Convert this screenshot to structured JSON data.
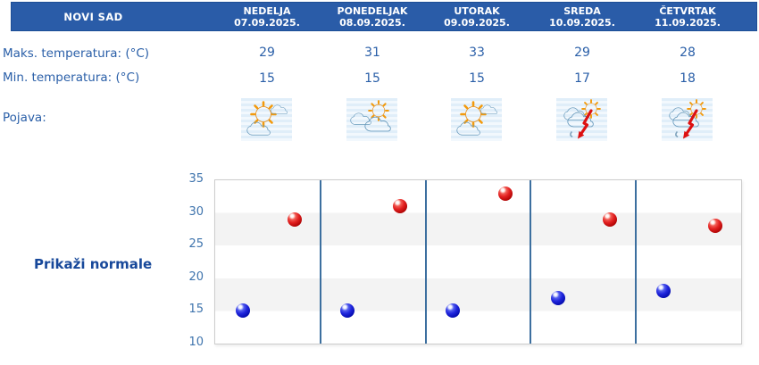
{
  "header": {
    "location": "NOVI SAD",
    "days": [
      {
        "name": "NEDELJA",
        "date": "07.09.2025."
      },
      {
        "name": "PONEDELJAK",
        "date": "08.09.2025."
      },
      {
        "name": "UTORAK",
        "date": "09.09.2025."
      },
      {
        "name": "SREDA",
        "date": "10.09.2025."
      },
      {
        "name": "ČETVRTAK",
        "date": "11.09.2025."
      }
    ]
  },
  "rows": {
    "max_temp_label": "Maks. temperatura: (°C)",
    "min_temp_label": "Min. temperatura: (°C)",
    "phenomenon_label": "Pojava:"
  },
  "forecast": {
    "max_temps": [
      29,
      31,
      33,
      29,
      28
    ],
    "min_temps": [
      15,
      15,
      15,
      17,
      18
    ],
    "icons": [
      "sun-behind-clouds",
      "clouds-with-sun",
      "sun-behind-clouds",
      "thunderstorm-with-sun",
      "thunderstorm-with-sun"
    ]
  },
  "actions": {
    "show_normals_label": "Prikaži normale"
  },
  "colors": {
    "header_bg": "#2a5ca8",
    "text_blue": "#2a5fa8",
    "link_blue": "#17489a",
    "band_gray": "#f3f3f3",
    "divider_blue": "#3c6f9f"
  },
  "chart_data": {
    "type": "scatter",
    "categories": [
      "NEDELJA 07.09.2025.",
      "PONEDELJAK 08.09.2025.",
      "UTORAK 09.09.2025.",
      "SREDA 10.09.2025.",
      "ČETVRTAK 11.09.2025."
    ],
    "series": [
      {
        "name": "Maks. temperatura (°C)",
        "key": "max",
        "color": "#cc1111",
        "values": [
          29,
          31,
          33,
          29,
          28
        ]
      },
      {
        "name": "Min. temperatura (°C)",
        "key": "min",
        "color": "#1111cc",
        "values": [
          15,
          15,
          15,
          17,
          18
        ]
      }
    ],
    "title": "",
    "xlabel": "",
    "ylabel": "",
    "ylim": [
      10,
      35
    ],
    "yticks": [
      35,
      30,
      25,
      20,
      15,
      10
    ],
    "grid": "horizontal bands, gray at 15-20 and 25-30, blue vertical column separators",
    "legend": "none"
  }
}
